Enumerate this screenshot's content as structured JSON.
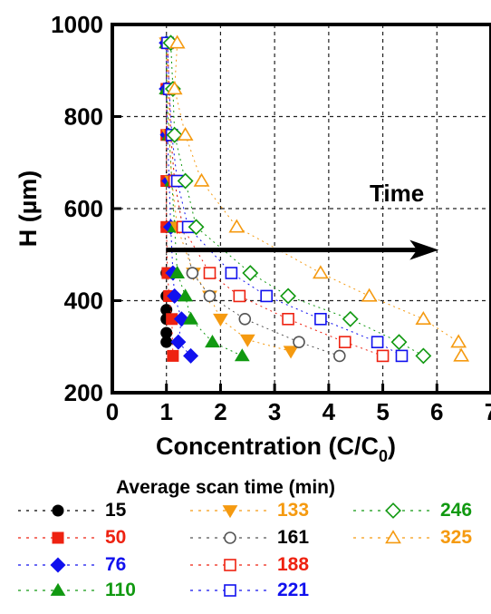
{
  "chart_data": {
    "type": "scatter",
    "xlabel": "Concentration (C/C",
    "xlabel_sub": "0",
    "xlabel_close": ")",
    "ylabel": "H (µm)",
    "xlim": [
      0,
      7
    ],
    "ylim": [
      200,
      1000
    ],
    "xticks": [
      "0",
      "1",
      "2",
      "3",
      "4",
      "5",
      "6",
      "7"
    ],
    "yticks": [
      "200",
      "400",
      "600",
      "800",
      "1000"
    ],
    "grid": "dashed",
    "legend_title": "Average scan time (min)",
    "annotation": {
      "text": "Time",
      "arrow_from": [
        1.0,
        510
      ],
      "arrow_to": [
        6.0,
        510
      ]
    },
    "series": [
      {
        "name": "15",
        "color": "#000000",
        "marker": "circle-filled",
        "x": [
          1.0,
          1.0,
          1.0,
          1.0,
          1.0,
          1.0,
          1.0,
          1.0,
          1.0,
          1.0,
          1.0
        ],
        "y": [
          310,
          380,
          410,
          460,
          560,
          660,
          760,
          860,
          960,
          360,
          330
        ]
      },
      {
        "name": "50",
        "color": "#ee2211",
        "marker": "square-filled",
        "x": [
          1.12,
          1.1,
          1.05,
          1.02,
          1.0,
          1.0,
          1.0,
          1.0,
          1.0
        ],
        "y": [
          280,
          360,
          410,
          460,
          560,
          660,
          760,
          860,
          960
        ]
      },
      {
        "name": "76",
        "color": "#1111ee",
        "marker": "diamond-filled",
        "x": [
          1.45,
          1.28,
          1.15,
          1.12,
          1.08,
          1.05,
          1.02,
          1.0,
          1.0,
          1.22
        ],
        "y": [
          280,
          360,
          410,
          460,
          560,
          660,
          760,
          860,
          960,
          310
        ]
      },
      {
        "name": "110",
        "color": "#119911",
        "marker": "triangle-up-filled",
        "x": [
          2.4,
          1.85,
          1.45,
          1.35,
          1.2,
          1.15,
          1.1,
          1.05,
          1.0,
          1.0
        ],
        "y": [
          280,
          310,
          360,
          410,
          460,
          560,
          660,
          760,
          860,
          960
        ]
      },
      {
        "name": "133",
        "color": "#f59a10",
        "marker": "triangle-down-filled",
        "x": [
          3.3,
          2.5,
          2.0,
          1.8,
          1.5,
          1.2,
          1.1,
          1.05,
          1.0
        ],
        "y": [
          290,
          315,
          360,
          410,
          460,
          560,
          660,
          760,
          960
        ]
      },
      {
        "name": "161",
        "color": "#555555",
        "marker": "circle-open",
        "x": [
          4.2,
          3.45,
          2.45,
          1.8,
          1.48,
          1.3,
          1.15,
          1.08,
          1.05,
          1.02
        ],
        "y": [
          280,
          310,
          360,
          410,
          460,
          560,
          660,
          760,
          860,
          960
        ]
      },
      {
        "name": "188",
        "color": "#ee2211",
        "marker": "square-open",
        "x": [
          5.0,
          4.3,
          3.25,
          2.35,
          1.8,
          1.3,
          1.15,
          1.08,
          1.05,
          1.02
        ],
        "y": [
          280,
          310,
          360,
          410,
          460,
          560,
          660,
          760,
          860,
          960
        ]
      },
      {
        "name": "221",
        "color": "#1111ee",
        "marker": "square-open",
        "x": [
          5.35,
          4.9,
          3.85,
          2.85,
          2.2,
          1.4,
          1.2,
          1.1,
          1.05,
          1.02
        ],
        "y": [
          280,
          310,
          360,
          410,
          460,
          560,
          660,
          760,
          860,
          960
        ]
      },
      {
        "name": "246",
        "color": "#119911",
        "marker": "diamond-open",
        "x": [
          5.75,
          5.3,
          4.4,
          3.25,
          2.55,
          1.55,
          1.35,
          1.15,
          1.12,
          1.08
        ],
        "y": [
          280,
          310,
          360,
          410,
          460,
          560,
          660,
          760,
          860,
          960
        ]
      },
      {
        "name": "325",
        "color": "#f59a10",
        "marker": "triangle-up-open",
        "x": [
          6.45,
          6.4,
          5.75,
          4.75,
          3.85,
          2.3,
          1.65,
          1.35,
          1.15,
          1.2
        ],
        "y": [
          280,
          310,
          360,
          410,
          460,
          560,
          660,
          760,
          860,
          960
        ]
      }
    ]
  }
}
